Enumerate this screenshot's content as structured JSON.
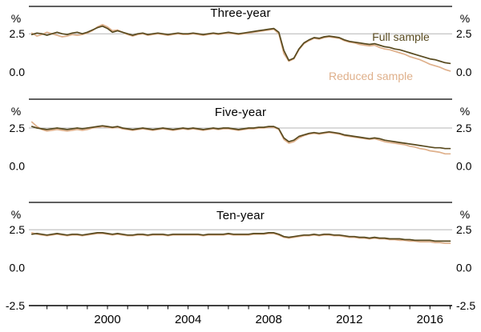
{
  "figure": {
    "annotations": {
      "full_sample": "Full sample",
      "reduced_sample": "Reduced sample"
    },
    "colors": {
      "full_sample": "#584a1f",
      "reduced_sample": "#dfb08b",
      "gridline": "#b5b5b5",
      "frame": "#000000"
    }
  },
  "x_axis": {
    "xmin": 1996.1,
    "xmax": 2017.1,
    "minor_ticks_from": 1997,
    "minor_ticks_to": 2017,
    "labeled_ticks": [
      2000,
      2004,
      2008,
      2012,
      2016
    ]
  },
  "chart_data": [
    {
      "type": "line",
      "title": "Three-year",
      "unit_left": "%",
      "unit_right": "%",
      "yticks": [
        2.5,
        0.0
      ],
      "gridline_at": 2.5,
      "ylim": [
        -1.8,
        4.3
      ],
      "x_start": 1996.25,
      "x_step": 0.25,
      "series": [
        {
          "name": "Full sample",
          "color_key": "full_sample",
          "values": [
            2.45,
            2.55,
            2.5,
            2.4,
            2.5,
            2.6,
            2.5,
            2.45,
            2.55,
            2.6,
            2.5,
            2.6,
            2.75,
            2.9,
            3.0,
            2.85,
            2.6,
            2.7,
            2.6,
            2.5,
            2.4,
            2.5,
            2.55,
            2.45,
            2.5,
            2.55,
            2.5,
            2.45,
            2.5,
            2.55,
            2.5,
            2.5,
            2.55,
            2.5,
            2.45,
            2.5,
            2.55,
            2.5,
            2.55,
            2.6,
            2.55,
            2.5,
            2.55,
            2.6,
            2.65,
            2.7,
            2.75,
            2.8,
            2.85,
            2.6,
            1.4,
            0.75,
            0.9,
            1.5,
            1.9,
            2.1,
            2.25,
            2.2,
            2.3,
            2.35,
            2.3,
            2.25,
            2.1,
            2.0,
            1.95,
            1.9,
            1.85,
            1.8,
            1.85,
            1.75,
            1.65,
            1.6,
            1.5,
            1.45,
            1.35,
            1.25,
            1.15,
            1.05,
            0.95,
            0.85,
            0.8,
            0.7,
            0.6,
            0.55
          ]
        },
        {
          "name": "Reduced sample",
          "color_key": "reduced_sample",
          "values": [
            2.55,
            2.35,
            2.45,
            2.6,
            2.5,
            2.4,
            2.3,
            2.35,
            2.45,
            2.4,
            2.45,
            2.55,
            2.7,
            2.95,
            3.1,
            2.95,
            2.7,
            2.75,
            2.6,
            2.45,
            2.35,
            2.45,
            2.5,
            2.4,
            2.45,
            2.5,
            2.45,
            2.4,
            2.45,
            2.5,
            2.45,
            2.45,
            2.5,
            2.45,
            2.4,
            2.45,
            2.5,
            2.45,
            2.5,
            2.55,
            2.5,
            2.45,
            2.5,
            2.55,
            2.6,
            2.65,
            2.7,
            2.75,
            2.8,
            2.5,
            1.2,
            0.7,
            0.85,
            1.45,
            1.85,
            2.05,
            2.2,
            2.15,
            2.25,
            2.3,
            2.25,
            2.2,
            2.05,
            1.95,
            1.9,
            1.8,
            1.75,
            1.7,
            1.75,
            1.6,
            1.5,
            1.45,
            1.35,
            1.25,
            1.15,
            1.0,
            0.9,
            0.8,
            0.65,
            0.5,
            0.4,
            0.3,
            0.15,
            0.05
          ]
        }
      ]
    },
    {
      "type": "line",
      "title": "Five-year",
      "unit_left": "%",
      "unit_right": "%",
      "yticks": [
        2.5,
        0.0
      ],
      "gridline_at": 2.5,
      "ylim": [
        -2.4,
        4.4
      ],
      "x_start": 1996.25,
      "x_step": 0.25,
      "series": [
        {
          "name": "Full sample",
          "color_key": "full_sample",
          "values": [
            2.6,
            2.5,
            2.45,
            2.4,
            2.45,
            2.5,
            2.45,
            2.4,
            2.45,
            2.5,
            2.45,
            2.5,
            2.55,
            2.6,
            2.65,
            2.6,
            2.55,
            2.6,
            2.5,
            2.45,
            2.4,
            2.45,
            2.5,
            2.45,
            2.4,
            2.45,
            2.5,
            2.45,
            2.4,
            2.45,
            2.5,
            2.45,
            2.5,
            2.45,
            2.4,
            2.45,
            2.5,
            2.45,
            2.5,
            2.5,
            2.45,
            2.4,
            2.45,
            2.5,
            2.5,
            2.55,
            2.55,
            2.6,
            2.6,
            2.45,
            1.85,
            1.6,
            1.7,
            1.95,
            2.05,
            2.15,
            2.2,
            2.15,
            2.2,
            2.25,
            2.2,
            2.15,
            2.05,
            2.0,
            1.95,
            1.9,
            1.85,
            1.8,
            1.85,
            1.8,
            1.7,
            1.65,
            1.6,
            1.55,
            1.5,
            1.45,
            1.4,
            1.35,
            1.3,
            1.25,
            1.2,
            1.2,
            1.15,
            1.15
          ]
        },
        {
          "name": "Reduced sample",
          "color_key": "reduced_sample",
          "values": [
            2.9,
            2.6,
            2.4,
            2.3,
            2.35,
            2.4,
            2.35,
            2.3,
            2.35,
            2.4,
            2.35,
            2.4,
            2.5,
            2.55,
            2.6,
            2.55,
            2.5,
            2.55,
            2.45,
            2.4,
            2.35,
            2.4,
            2.45,
            2.4,
            2.35,
            2.4,
            2.45,
            2.4,
            2.35,
            2.4,
            2.45,
            2.4,
            2.45,
            2.4,
            2.35,
            2.4,
            2.45,
            2.4,
            2.45,
            2.45,
            2.4,
            2.35,
            2.4,
            2.45,
            2.45,
            2.5,
            2.5,
            2.55,
            2.55,
            2.4,
            1.75,
            1.5,
            1.6,
            1.85,
            2.0,
            2.1,
            2.15,
            2.1,
            2.15,
            2.2,
            2.15,
            2.1,
            2.0,
            1.95,
            1.9,
            1.85,
            1.8,
            1.75,
            1.8,
            1.7,
            1.6,
            1.55,
            1.5,
            1.45,
            1.4,
            1.3,
            1.25,
            1.15,
            1.1,
            1.0,
            0.95,
            0.9,
            0.8,
            0.8
          ]
        }
      ]
    },
    {
      "type": "line",
      "title": "Ten-year",
      "unit_left": "%",
      "unit_right": "%",
      "yticks": [
        2.5,
        0.0,
        -2.5
      ],
      "gridline_at": 2.5,
      "ylim": [
        -2.5,
        4.3
      ],
      "x_start": 1996.25,
      "x_step": 0.25,
      "series": [
        {
          "name": "Full sample",
          "color_key": "full_sample",
          "values": [
            2.2,
            2.25,
            2.2,
            2.15,
            2.2,
            2.25,
            2.2,
            2.15,
            2.2,
            2.2,
            2.15,
            2.2,
            2.25,
            2.3,
            2.3,
            2.25,
            2.2,
            2.25,
            2.2,
            2.15,
            2.15,
            2.2,
            2.2,
            2.15,
            2.2,
            2.2,
            2.2,
            2.15,
            2.2,
            2.2,
            2.2,
            2.2,
            2.2,
            2.2,
            2.15,
            2.2,
            2.2,
            2.2,
            2.2,
            2.25,
            2.2,
            2.2,
            2.2,
            2.2,
            2.25,
            2.25,
            2.25,
            2.3,
            2.3,
            2.2,
            2.05,
            2.0,
            2.05,
            2.1,
            2.15,
            2.15,
            2.2,
            2.15,
            2.2,
            2.2,
            2.15,
            2.15,
            2.1,
            2.05,
            2.05,
            2.0,
            2.0,
            1.95,
            2.0,
            1.95,
            1.95,
            1.9,
            1.9,
            1.9,
            1.85,
            1.85,
            1.8,
            1.8,
            1.8,
            1.8,
            1.75,
            1.75,
            1.75,
            1.75
          ]
        },
        {
          "name": "Reduced sample",
          "color_key": "reduced_sample",
          "values": [
            2.3,
            2.2,
            2.15,
            2.1,
            2.15,
            2.2,
            2.15,
            2.1,
            2.15,
            2.15,
            2.1,
            2.15,
            2.2,
            2.25,
            2.25,
            2.2,
            2.15,
            2.2,
            2.15,
            2.1,
            2.1,
            2.15,
            2.15,
            2.1,
            2.15,
            2.15,
            2.15,
            2.1,
            2.15,
            2.15,
            2.15,
            2.15,
            2.15,
            2.15,
            2.1,
            2.15,
            2.15,
            2.15,
            2.15,
            2.2,
            2.15,
            2.15,
            2.15,
            2.15,
            2.2,
            2.2,
            2.2,
            2.25,
            2.25,
            2.15,
            2.0,
            1.95,
            2.0,
            2.05,
            2.1,
            2.1,
            2.15,
            2.1,
            2.15,
            2.15,
            2.1,
            2.1,
            2.05,
            2.0,
            2.0,
            1.95,
            1.95,
            1.9,
            1.95,
            1.9,
            1.9,
            1.85,
            1.85,
            1.8,
            1.8,
            1.75,
            1.75,
            1.7,
            1.7,
            1.7,
            1.65,
            1.65,
            1.6,
            1.6
          ]
        }
      ]
    }
  ]
}
